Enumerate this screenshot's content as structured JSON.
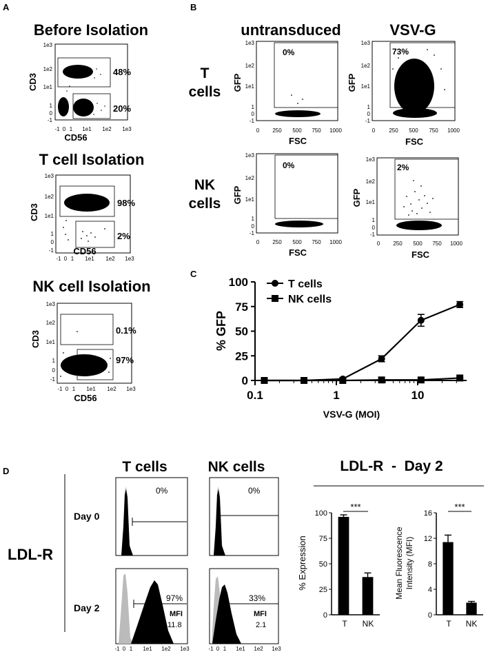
{
  "panelA": {
    "label": "A",
    "x_ticks": [
      "-1",
      "0",
      "1",
      "1e1",
      "1e2",
      "1e3"
    ],
    "y_ticks": [
      "1e3",
      "1e2",
      "1e1",
      "1",
      "0",
      "-1"
    ],
    "x_label": "CD56",
    "y_label": "CD3",
    "plots": [
      {
        "title": "Before Isolation",
        "pct_upper": "48%",
        "pct_lower": "20%"
      },
      {
        "title": "T cell Isolation",
        "pct_upper": "98%",
        "pct_lower": "2%"
      },
      {
        "title": "NK cell Isolation",
        "pct_upper": "0.1%",
        "pct_lower": "97%"
      }
    ]
  },
  "panelB": {
    "label": "B",
    "col_titles": [
      "untransduced",
      "VSV-G"
    ],
    "row_titles": [
      [
        "T",
        "cells"
      ],
      [
        "NK",
        "cells"
      ]
    ],
    "x_label": "FSC",
    "y_label": "GFP",
    "x_ticks": [
      "0",
      "250",
      "500",
      "750",
      "1000"
    ],
    "y_ticks": [
      "1e3",
      "1e2",
      "1e1",
      "1",
      "0",
      "-1"
    ],
    "pcts": [
      "0%",
      "73%",
      "0%",
      "2%"
    ]
  },
  "panelC": {
    "label": "C",
    "chart_data": {
      "type": "line",
      "title": "",
      "xlabel": "VSV-G (MOI)",
      "ylabel": "% GFP",
      "x_scale": "log",
      "xlim": [
        0.1,
        40
      ],
      "ylim": [
        0,
        100
      ],
      "x_ticks": [
        0.1,
        1,
        10
      ],
      "x_tick_labels": [
        "0.1",
        "1",
        "10"
      ],
      "y_ticks": [
        0,
        25,
        50,
        75,
        100
      ],
      "y_tick_labels": [
        "0",
        "25",
        "50",
        "75",
        "100"
      ],
      "x": [
        0.13,
        0.4,
        1.2,
        3.6,
        11,
        33
      ],
      "series": [
        {
          "name": "T cells",
          "marker": "circle",
          "values": [
            0,
            0,
            1.5,
            22,
            61,
            77
          ],
          "errors": [
            0,
            0,
            0.5,
            3,
            6,
            3
          ]
        },
        {
          "name": "NK cells",
          "marker": "square",
          "values": [
            0,
            0,
            0,
            0.5,
            0.5,
            2.5
          ],
          "errors": [
            0,
            0,
            0,
            0,
            0,
            0.5
          ]
        }
      ],
      "legend_position": "top-left"
    }
  },
  "panelD": {
    "label": "D",
    "row_main": "LDL-R",
    "col_titles": [
      "T cells",
      "NK cells"
    ],
    "row_titles": [
      "Day 0",
      "Day 2"
    ],
    "hist_x_ticks": [
      "-1",
      "0",
      "1",
      "1e1",
      "1e2",
      "1e3"
    ],
    "hist": [
      {
        "pct": "0%",
        "mfi_label": "",
        "mfi_value": ""
      },
      {
        "pct": "0%",
        "mfi_label": "",
        "mfi_value": ""
      },
      {
        "pct": "97%",
        "mfi_label": "MFI",
        "mfi_value": "11.8"
      },
      {
        "pct": "33%",
        "mfi_label": "MFI",
        "mfi_value": "2.1"
      }
    ],
    "bar_header": "LDL-R  -  Day 2",
    "bar_charts": [
      {
        "chart_data": {
          "type": "bar",
          "categories": [
            "T",
            "NK"
          ],
          "values": [
            96,
            37
          ],
          "errors": [
            2,
            4
          ],
          "ylabel": "% Expression",
          "ylim": [
            0,
            100
          ],
          "y_ticks": [
            "0",
            "25",
            "50",
            "75",
            "100"
          ],
          "significance": "***"
        }
      },
      {
        "chart_data": {
          "type": "bar",
          "categories": [
            "T",
            "NK"
          ],
          "values": [
            11.4,
            1.9
          ],
          "errors": [
            1.1,
            0.2
          ],
          "ylabel_lines": [
            "Mean Fluorescence",
            "Intensity (MFI)"
          ],
          "ylim": [
            0,
            16
          ],
          "y_ticks": [
            "0",
            "4",
            "8",
            "12",
            "16"
          ],
          "significance": "***"
        }
      }
    ]
  },
  "colors": {
    "ink": "#000000",
    "isotype": "#bbbbbb"
  }
}
